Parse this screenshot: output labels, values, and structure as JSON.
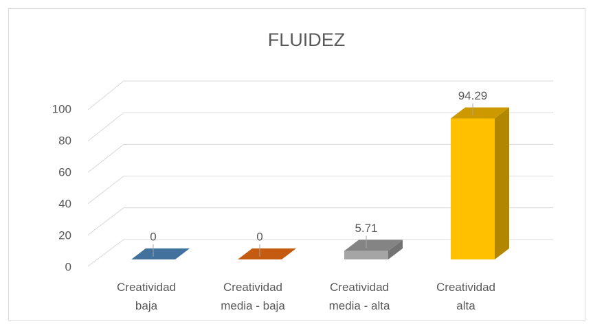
{
  "chart_data": {
    "type": "bar3d",
    "title": "FLUIDEZ",
    "categories": [
      "Creatividad baja",
      "Creatividad media - baja",
      "Creatividad media - alta",
      "Creatividad alta"
    ],
    "series": [
      {
        "values": [
          0,
          0,
          5.71,
          94.29
        ],
        "colors": [
          "#41719c",
          "#c55a11",
          "#a5a5a5",
          "#ffc000"
        ]
      }
    ],
    "ylim": [
      0,
      100
    ],
    "yticks": [
      0,
      20,
      40,
      60,
      80,
      100
    ],
    "grid": true
  }
}
